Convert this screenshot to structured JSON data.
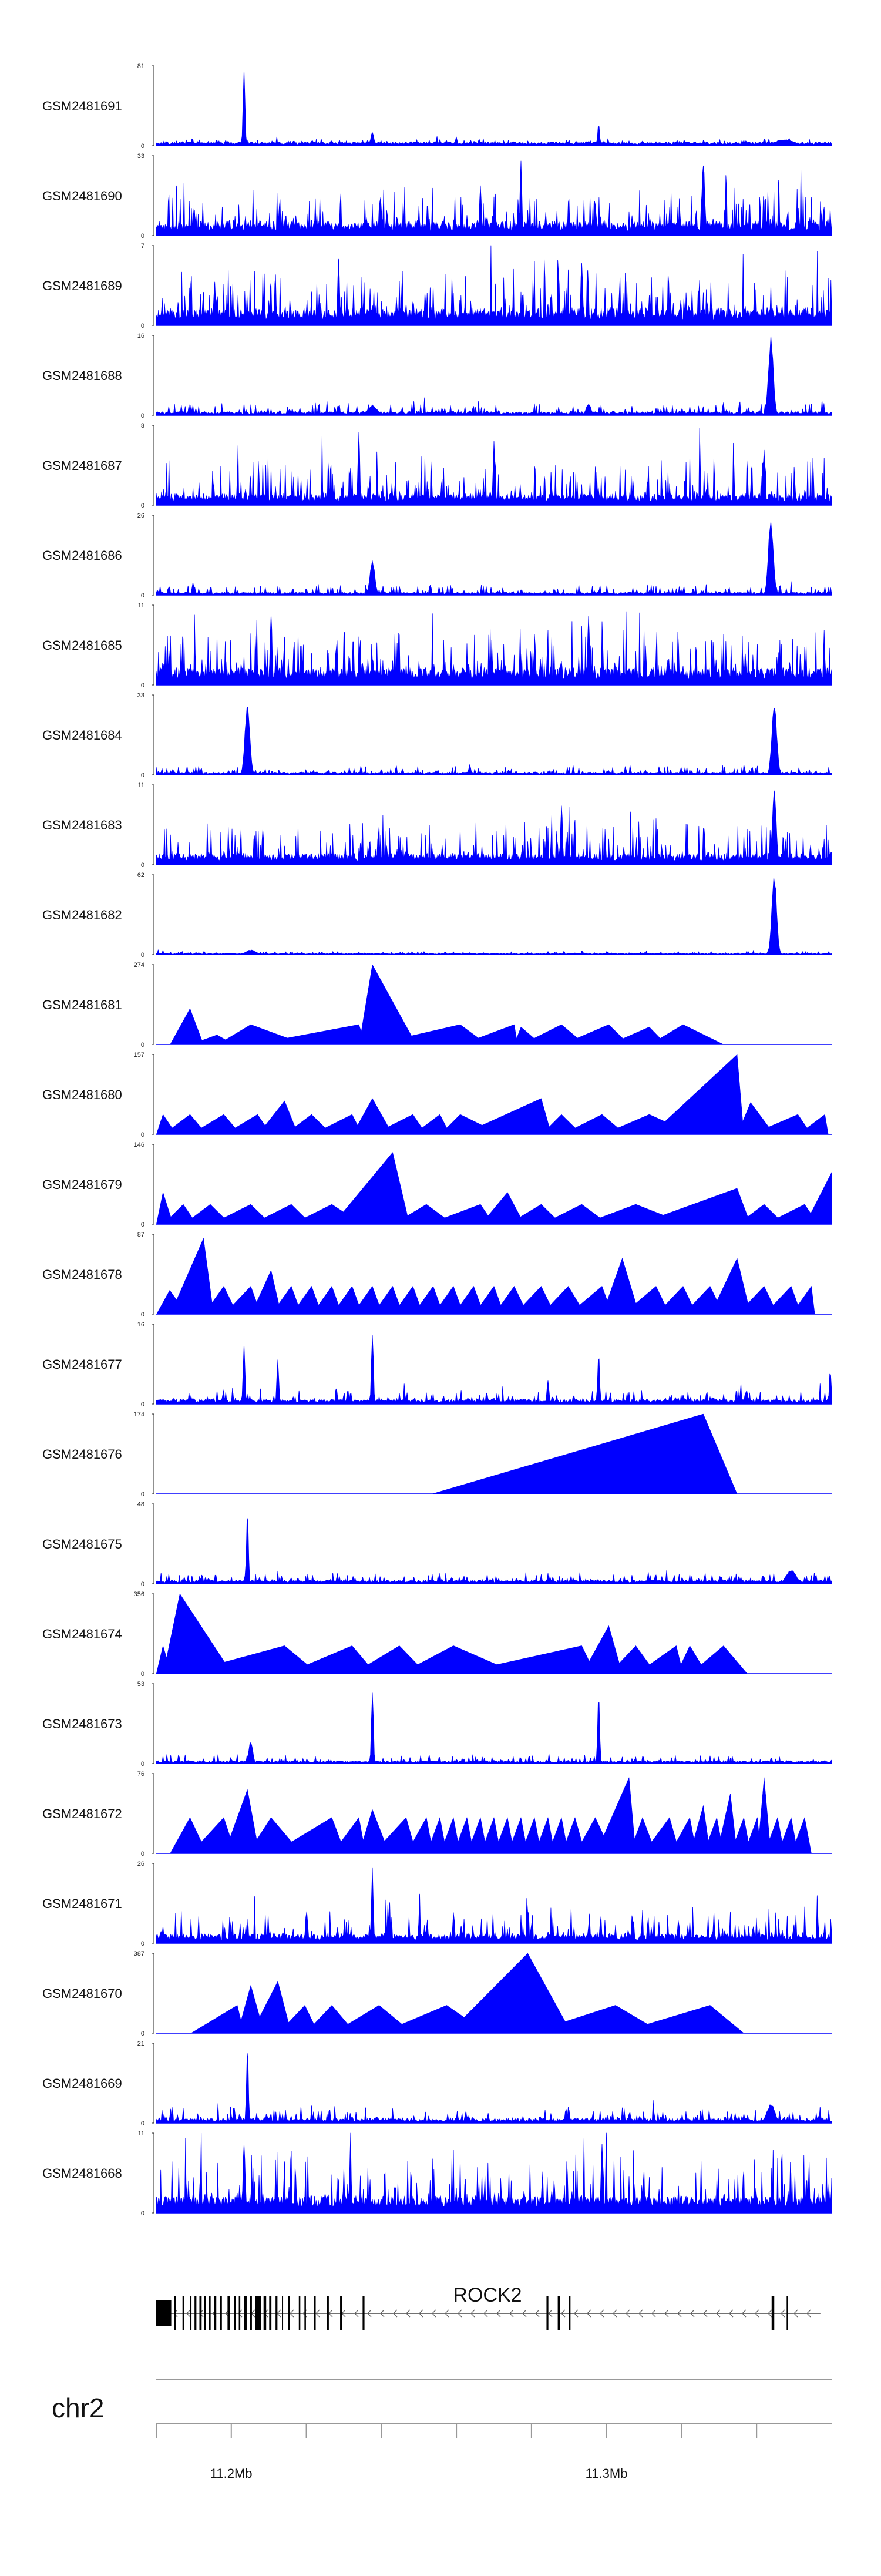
{
  "chart_data": {
    "type": "area",
    "title": "",
    "color": "#0000ff",
    "x_range_bp": [
      11180000,
      11360000
    ],
    "tracks": [
      {
        "name": "GSM2481691",
        "ymax": 81,
        "style": "noisy",
        "baseline": 0.04,
        "noise": 0.05,
        "peaks": [
          [
            0.13,
            1.0,
            0.002
          ],
          [
            0.32,
            0.18,
            0.003
          ],
          [
            0.655,
            0.28,
            0.002
          ],
          [
            0.93,
            0.08,
            0.02
          ]
        ]
      },
      {
        "name": "GSM2481690",
        "ymax": 33,
        "style": "dense",
        "baseline": 0.15,
        "noise": 0.45,
        "peaks": [
          [
            0.54,
            0.95,
            0.002
          ],
          [
            0.81,
            0.92,
            0.003
          ],
          [
            0.48,
            0.7,
            0.002
          ]
        ]
      },
      {
        "name": "GSM2481689",
        "ymax": 7,
        "style": "dense",
        "baseline": 0.18,
        "noise": 0.55,
        "peaks": [
          [
            0.27,
            0.95,
            0.002
          ],
          [
            0.63,
            0.9,
            0.002
          ]
        ]
      },
      {
        "name": "GSM2481688",
        "ymax": 16,
        "style": "noisy",
        "baseline": 0.04,
        "noise": 0.12,
        "peaks": [
          [
            0.91,
            1.0,
            0.005
          ],
          [
            0.32,
            0.12,
            0.01
          ],
          [
            0.64,
            0.15,
            0.005
          ]
        ]
      },
      {
        "name": "GSM2481687",
        "ymax": 8,
        "style": "dense",
        "baseline": 0.12,
        "noise": 0.5,
        "peaks": [
          [
            0.3,
            0.95,
            0.002
          ],
          [
            0.5,
            0.8,
            0.002
          ],
          [
            0.9,
            0.75,
            0.002
          ]
        ]
      },
      {
        "name": "GSM2481686",
        "ymax": 26,
        "style": "noisy",
        "baseline": 0.03,
        "noise": 0.1,
        "peaks": [
          [
            0.91,
            1.0,
            0.005
          ],
          [
            0.32,
            0.45,
            0.005
          ]
        ]
      },
      {
        "name": "GSM2481685",
        "ymax": 11,
        "style": "dense",
        "baseline": 0.18,
        "noise": 0.55,
        "peaks": [
          [
            0.17,
            0.95,
            0.002
          ],
          [
            0.64,
            0.9,
            0.002
          ]
        ]
      },
      {
        "name": "GSM2481684",
        "ymax": 33,
        "style": "noisy",
        "baseline": 0.03,
        "noise": 0.08,
        "peaks": [
          [
            0.135,
            0.95,
            0.005
          ],
          [
            0.915,
            0.95,
            0.005
          ]
        ]
      },
      {
        "name": "GSM2481683",
        "ymax": 11,
        "style": "dense",
        "baseline": 0.12,
        "noise": 0.45,
        "peaks": [
          [
            0.915,
            1.0,
            0.004
          ],
          [
            0.6,
            0.8,
            0.002
          ]
        ]
      },
      {
        "name": "GSM2481682",
        "ymax": 62,
        "style": "noisy",
        "baseline": 0.015,
        "noise": 0.03,
        "peaks": [
          [
            0.915,
            1.0,
            0.005
          ],
          [
            0.14,
            0.06,
            0.01
          ]
        ]
      },
      {
        "name": "GSM2481681",
        "ymax": 274,
        "style": "sparse",
        "range": [
          0.02,
          0.9
        ],
        "peaks": [
          [
            0.05,
            0.45
          ],
          [
            0.09,
            0.12
          ],
          [
            0.14,
            0.25
          ],
          [
            0.3,
            0.25
          ],
          [
            0.32,
            1.0
          ],
          [
            0.45,
            0.25
          ],
          [
            0.53,
            0.25
          ],
          [
            0.54,
            0.22
          ],
          [
            0.6,
            0.25
          ],
          [
            0.67,
            0.25
          ],
          [
            0.73,
            0.22
          ],
          [
            0.78,
            0.25
          ]
        ]
      },
      {
        "name": "GSM2481680",
        "ymax": 157,
        "style": "sparse",
        "range": [
          0.0,
          1.0
        ],
        "peaks": [
          [
            0.01,
            0.25
          ],
          [
            0.05,
            0.25
          ],
          [
            0.1,
            0.25
          ],
          [
            0.15,
            0.25
          ],
          [
            0.19,
            0.42
          ],
          [
            0.23,
            0.25
          ],
          [
            0.29,
            0.25
          ],
          [
            0.32,
            0.45
          ],
          [
            0.38,
            0.25
          ],
          [
            0.42,
            0.25
          ],
          [
            0.45,
            0.25
          ],
          [
            0.57,
            0.45
          ],
          [
            0.6,
            0.25
          ],
          [
            0.66,
            0.25
          ],
          [
            0.73,
            0.25
          ],
          [
            0.86,
            1.0
          ],
          [
            0.88,
            0.4
          ],
          [
            0.95,
            0.25
          ],
          [
            0.99,
            0.25
          ]
        ]
      },
      {
        "name": "GSM2481679",
        "ymax": 146,
        "style": "sparse",
        "range": [
          0.0,
          1.0
        ],
        "peaks": [
          [
            0.01,
            0.4
          ],
          [
            0.04,
            0.25
          ],
          [
            0.08,
            0.25
          ],
          [
            0.14,
            0.25
          ],
          [
            0.2,
            0.25
          ],
          [
            0.26,
            0.25
          ],
          [
            0.35,
            0.9
          ],
          [
            0.4,
            0.25
          ],
          [
            0.48,
            0.25
          ],
          [
            0.52,
            0.4
          ],
          [
            0.57,
            0.25
          ],
          [
            0.63,
            0.25
          ],
          [
            0.71,
            0.25
          ],
          [
            0.86,
            0.45
          ],
          [
            0.9,
            0.25
          ],
          [
            0.96,
            0.25
          ],
          [
            1.0,
            0.65
          ]
        ]
      },
      {
        "name": "GSM2481678",
        "ymax": 87,
        "style": "sparse",
        "range": [
          0.0,
          0.98
        ],
        "peaks": [
          [
            0.02,
            0.3
          ],
          [
            0.07,
            0.95
          ],
          [
            0.1,
            0.35
          ],
          [
            0.14,
            0.35
          ],
          [
            0.17,
            0.55
          ],
          [
            0.2,
            0.35
          ],
          [
            0.23,
            0.35
          ],
          [
            0.26,
            0.35
          ],
          [
            0.29,
            0.35
          ],
          [
            0.32,
            0.35
          ],
          [
            0.35,
            0.35
          ],
          [
            0.38,
            0.35
          ],
          [
            0.41,
            0.35
          ],
          [
            0.44,
            0.35
          ],
          [
            0.47,
            0.35
          ],
          [
            0.5,
            0.35
          ],
          [
            0.53,
            0.35
          ],
          [
            0.57,
            0.35
          ],
          [
            0.61,
            0.35
          ],
          [
            0.66,
            0.35
          ],
          [
            0.69,
            0.7
          ],
          [
            0.74,
            0.35
          ],
          [
            0.78,
            0.35
          ],
          [
            0.82,
            0.35
          ],
          [
            0.86,
            0.7
          ],
          [
            0.9,
            0.35
          ],
          [
            0.94,
            0.35
          ],
          [
            0.97,
            0.35
          ]
        ]
      },
      {
        "name": "GSM2481677",
        "ymax": 16,
        "style": "noisy",
        "baseline": 0.05,
        "noise": 0.14,
        "peaks": [
          [
            0.13,
            0.8,
            0.002
          ],
          [
            0.32,
            1.0,
            0.002
          ],
          [
            0.18,
            0.6,
            0.002
          ],
          [
            0.58,
            0.35,
            0.002
          ],
          [
            0.655,
            0.65,
            0.002
          ],
          [
            0.998,
            0.45,
            0.002
          ]
        ]
      },
      {
        "name": "GSM2481676",
        "ymax": 174,
        "style": "sparse",
        "range": [
          0.4,
          0.91
        ],
        "peaks": [
          [
            0.81,
            1.0
          ]
        ]
      },
      {
        "name": "GSM2481675",
        "ymax": 48,
        "style": "noisy",
        "baseline": 0.04,
        "noise": 0.1,
        "peaks": [
          [
            0.135,
            1.0,
            0.002
          ],
          [
            0.94,
            0.18,
            0.01
          ]
        ]
      },
      {
        "name": "GSM2481674",
        "ymax": 356,
        "style": "sparse",
        "range": [
          0.0,
          0.91
        ],
        "peaks": [
          [
            0.01,
            0.35
          ],
          [
            0.035,
            1.0
          ],
          [
            0.19,
            0.35
          ],
          [
            0.29,
            0.35
          ],
          [
            0.36,
            0.35
          ],
          [
            0.44,
            0.35
          ],
          [
            0.63,
            0.35
          ],
          [
            0.67,
            0.6
          ],
          [
            0.71,
            0.35
          ],
          [
            0.77,
            0.35
          ],
          [
            0.79,
            0.35
          ],
          [
            0.84,
            0.35
          ]
        ]
      },
      {
        "name": "GSM2481673",
        "ymax": 53,
        "style": "noisy",
        "baseline": 0.03,
        "noise": 0.08,
        "peaks": [
          [
            0.32,
            1.0,
            0.002
          ],
          [
            0.655,
            0.95,
            0.002
          ],
          [
            0.14,
            0.3,
            0.004
          ]
        ]
      },
      {
        "name": "GSM2481672",
        "ymax": 76,
        "style": "sparse",
        "range": [
          0.02,
          0.98
        ],
        "peaks": [
          [
            0.05,
            0.45
          ],
          [
            0.1,
            0.45
          ],
          [
            0.135,
            0.8
          ],
          [
            0.17,
            0.45
          ],
          [
            0.26,
            0.45
          ],
          [
            0.3,
            0.45
          ],
          [
            0.32,
            0.55
          ],
          [
            0.37,
            0.45
          ],
          [
            0.4,
            0.45
          ],
          [
            0.42,
            0.45
          ],
          [
            0.44,
            0.45
          ],
          [
            0.46,
            0.45
          ],
          [
            0.48,
            0.45
          ],
          [
            0.5,
            0.45
          ],
          [
            0.52,
            0.45
          ],
          [
            0.54,
            0.45
          ],
          [
            0.56,
            0.45
          ],
          [
            0.58,
            0.45
          ],
          [
            0.6,
            0.45
          ],
          [
            0.62,
            0.45
          ],
          [
            0.65,
            0.45
          ],
          [
            0.7,
            0.95
          ],
          [
            0.72,
            0.45
          ],
          [
            0.76,
            0.45
          ],
          [
            0.79,
            0.45
          ],
          [
            0.81,
            0.6
          ],
          [
            0.83,
            0.45
          ],
          [
            0.85,
            0.75
          ],
          [
            0.87,
            0.45
          ],
          [
            0.89,
            0.45
          ],
          [
            0.9,
            0.95
          ],
          [
            0.92,
            0.45
          ],
          [
            0.94,
            0.45
          ],
          [
            0.96,
            0.45
          ]
        ]
      },
      {
        "name": "GSM2481671",
        "ymax": 26,
        "style": "noisy",
        "baseline": 0.1,
        "noise": 0.35,
        "peaks": [
          [
            0.32,
            1.0,
            0.002
          ]
        ]
      },
      {
        "name": "GSM2481670",
        "ymax": 387,
        "style": "sparse",
        "range": [
          0.05,
          0.92
        ],
        "peaks": [
          [
            0.12,
            0.35
          ],
          [
            0.14,
            0.6
          ],
          [
            0.18,
            0.65
          ],
          [
            0.22,
            0.35
          ],
          [
            0.26,
            0.35
          ],
          [
            0.33,
            0.35
          ],
          [
            0.43,
            0.35
          ],
          [
            0.55,
            1.0
          ],
          [
            0.68,
            0.35
          ],
          [
            0.82,
            0.35
          ]
        ]
      },
      {
        "name": "GSM2481669",
        "ymax": 21,
        "style": "noisy",
        "baseline": 0.05,
        "noise": 0.15,
        "peaks": [
          [
            0.135,
            1.0,
            0.002
          ],
          [
            0.91,
            0.25,
            0.008
          ]
        ]
      },
      {
        "name": "GSM2481668",
        "ymax": 11,
        "style": "dense",
        "baseline": 0.18,
        "noise": 0.6,
        "peaks": [
          [
            0.13,
            1.0,
            0.002
          ],
          [
            0.66,
            0.95,
            0.002
          ]
        ]
      }
    ],
    "gene": {
      "name": "ROCK2",
      "strand": "-",
      "start": 11180000,
      "end": 11357000,
      "exons_bp": [
        [
          11180000,
          11184000
        ],
        [
          11184800,
          11185200
        ],
        [
          11187000,
          11187500
        ],
        [
          11189000,
          11189400
        ],
        [
          11190200,
          11190700
        ],
        [
          11191500,
          11192100
        ],
        [
          11192800,
          11193300
        ],
        [
          11194000,
          11194500
        ],
        [
          11195400,
          11196000
        ],
        [
          11197000,
          11197500
        ],
        [
          11199000,
          11199600
        ],
        [
          11200700,
          11201200
        ],
        [
          11202000,
          11202400
        ],
        [
          11203400,
          11204100
        ],
        [
          11205000,
          11205500
        ],
        [
          11206300,
          11208000
        ],
        [
          11208600,
          11209300
        ],
        [
          11210100,
          11210700
        ],
        [
          11211800,
          11212300
        ],
        [
          11213500,
          11213800
        ],
        [
          11215200,
          11215600
        ],
        [
          11218000,
          11218400
        ],
        [
          11219500,
          11219900
        ],
        [
          11222000,
          11222500
        ],
        [
          11225500,
          11226000
        ],
        [
          11229000,
          11229500
        ],
        [
          11235000,
          11235500
        ],
        [
          11284000,
          11284500
        ],
        [
          11287000,
          11287600
        ],
        [
          11290000,
          11290400
        ],
        [
          11344000,
          11344700
        ],
        [
          11348000,
          11348400
        ]
      ]
    },
    "chromosome": "chr2",
    "ticks_bp": [
      11200000,
      11220000,
      11240000,
      11260000,
      11280000,
      11300000,
      11320000,
      11340000
    ],
    "tick_labels": [
      {
        "bp": 11200000,
        "label": "11.2Mb"
      },
      {
        "bp": 11300000,
        "label": "11.3Mb"
      }
    ]
  }
}
